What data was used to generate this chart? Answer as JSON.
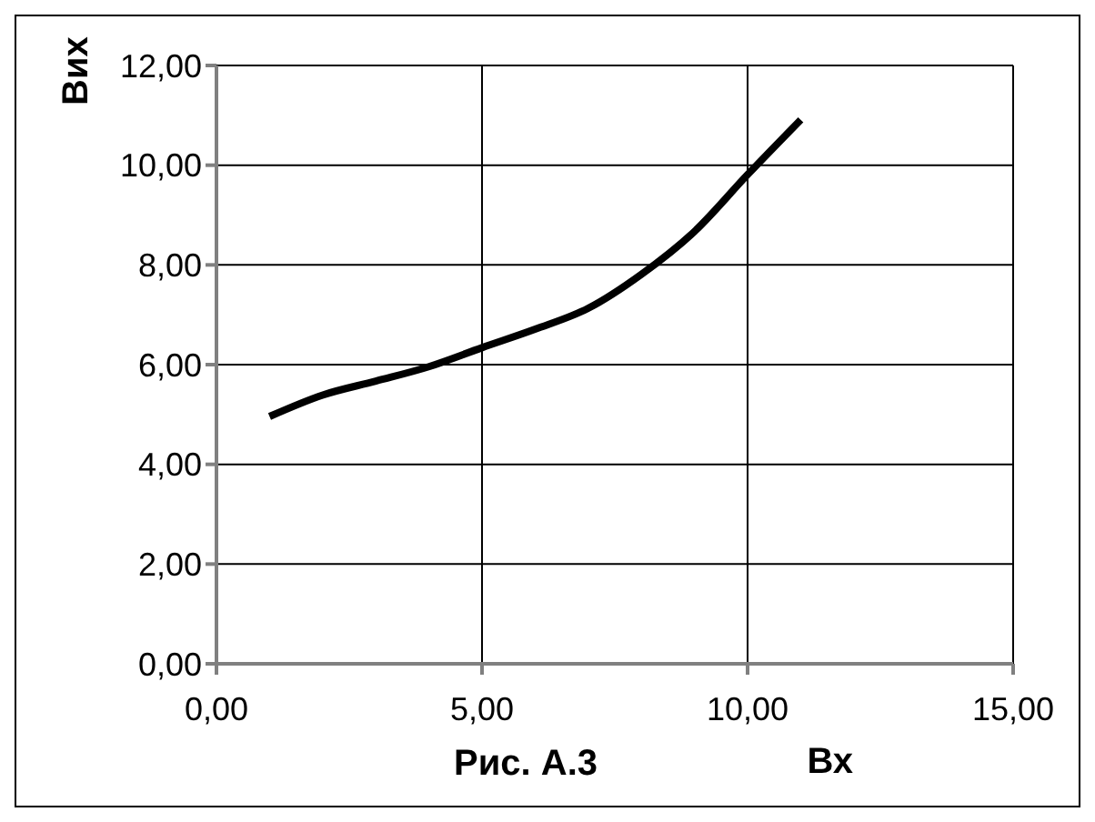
{
  "chart_data": {
    "type": "line",
    "xlabel": "Вх",
    "ylabel": "Вих",
    "annotations": [
      "Рис. А.3"
    ],
    "x": [
      1,
      2,
      3,
      4,
      5,
      6,
      7,
      8,
      9,
      10,
      11
    ],
    "series": [
      {
        "color": "#000000",
        "values": [
          4.96,
          5.39,
          5.67,
          5.96,
          6.34,
          6.71,
          7.13,
          7.81,
          8.67,
          9.81,
          10.91
        ]
      }
    ],
    "xlim": [
      0,
      15
    ],
    "ylim": [
      0,
      12
    ],
    "xticks": [
      {
        "value": 0,
        "label": "0,00"
      },
      {
        "value": 5,
        "label": "5,00"
      },
      {
        "value": 10,
        "label": "10,00"
      },
      {
        "value": 15,
        "label": "15,00"
      }
    ],
    "yticks": [
      {
        "value": 0,
        "label": "0,00"
      },
      {
        "value": 2,
        "label": "2,00"
      },
      {
        "value": 4,
        "label": "4,00"
      },
      {
        "value": 6,
        "label": "6,00"
      },
      {
        "value": 8,
        "label": "8,00"
      },
      {
        "value": 10,
        "label": "10,00"
      },
      {
        "value": 12,
        "label": "12,00"
      }
    ],
    "grid": true,
    "marker": "none",
    "line_style": "solid"
  }
}
